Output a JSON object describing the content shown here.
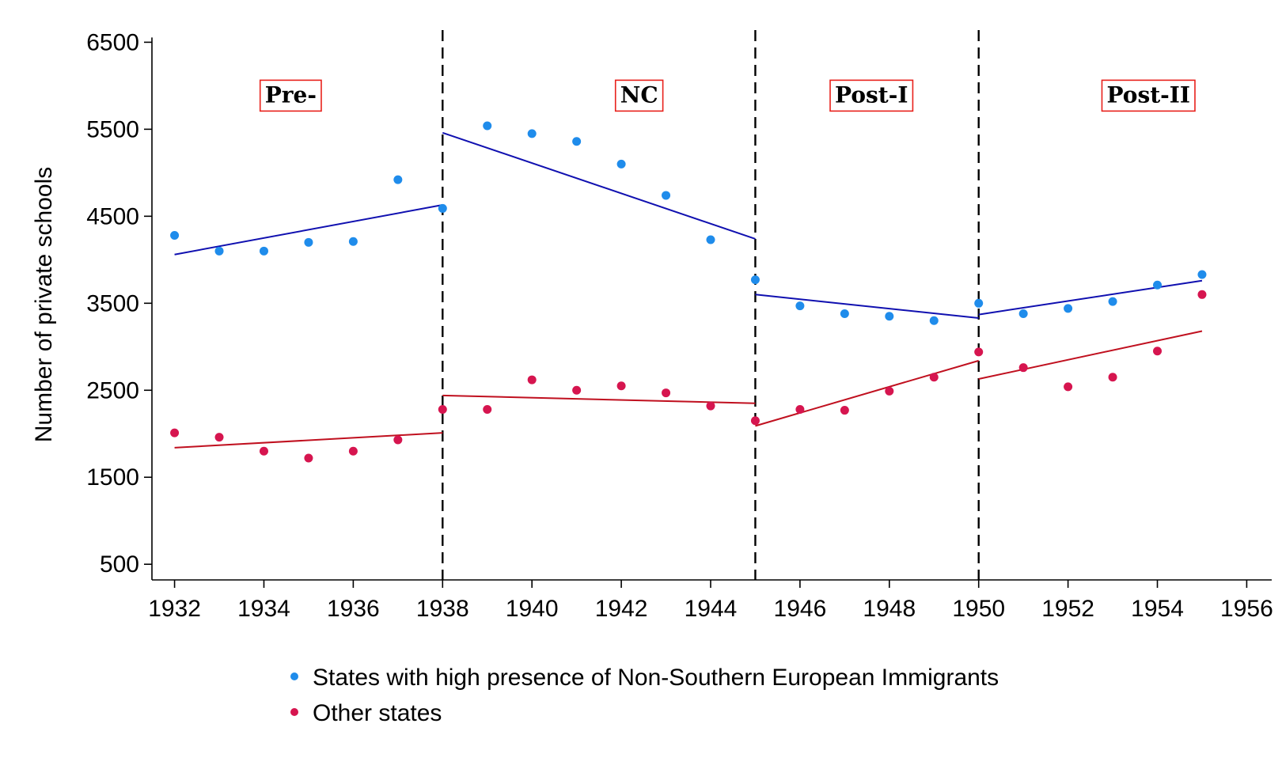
{
  "chart_data": {
    "type": "scatter",
    "title": "",
    "xlabel": "",
    "ylabel": "Number of private schools",
    "xlim": [
      1931.6,
      1956.4
    ],
    "ylim": [
      320,
      6640
    ],
    "xticks": [
      1932,
      1934,
      1936,
      1938,
      1940,
      1942,
      1944,
      1946,
      1948,
      1950,
      1952,
      1954,
      1956
    ],
    "yticks": [
      500,
      1500,
      2500,
      3500,
      4500,
      5500,
      6500
    ],
    "grid": false,
    "legend_position": "bottom",
    "cutoffs": [
      1938,
      1945,
      1950
    ],
    "periods": [
      {
        "label": "Pre-",
        "x": 1934.6,
        "y": 5900
      },
      {
        "label": "NC",
        "x": 1942.4,
        "y": 5900
      },
      {
        "label": "Post-I",
        "x": 1947.6,
        "y": 5900
      },
      {
        "label": "Post-II",
        "x": 1953.8,
        "y": 5900
      }
    ],
    "series": [
      {
        "name": "States with high presence of Non-Southern European Immigrants",
        "color": "#1f8ceb",
        "line_color": "#1010b0",
        "x": [
          1932,
          1933,
          1934,
          1935,
          1936,
          1937,
          1938,
          1939,
          1940,
          1941,
          1942,
          1943,
          1944,
          1945,
          1946,
          1947,
          1948,
          1949,
          1950,
          1951,
          1952,
          1953,
          1954,
          1955
        ],
        "values": [
          4280,
          4100,
          4100,
          4200,
          4210,
          4920,
          4590,
          5540,
          5450,
          5360,
          5100,
          4740,
          4230,
          3770,
          3470,
          3380,
          3350,
          3300,
          3500,
          3380,
          3440,
          3520,
          3710,
          3830
        ],
        "fits": [
          {
            "x": [
              1932,
              1938
            ],
            "y": [
              4060,
              4630
            ]
          },
          {
            "x": [
              1938,
              1945
            ],
            "y": [
              5460,
              4240
            ]
          },
          {
            "x": [
              1945,
              1950
            ],
            "y": [
              3600,
              3330
            ]
          },
          {
            "x": [
              1950,
              1955
            ],
            "y": [
              3370,
              3760
            ]
          }
        ]
      },
      {
        "name": "Other states",
        "color": "#d6154f",
        "line_color": "#c0101f",
        "x": [
          1932,
          1933,
          1934,
          1935,
          1936,
          1937,
          1938,
          1939,
          1940,
          1941,
          1942,
          1943,
          1944,
          1945,
          1946,
          1947,
          1948,
          1949,
          1950,
          1951,
          1952,
          1953,
          1954,
          1955
        ],
        "values": [
          2010,
          1960,
          1800,
          1720,
          1800,
          1930,
          2280,
          2280,
          2620,
          2500,
          2550,
          2470,
          2320,
          2150,
          2280,
          2270,
          2490,
          2650,
          2940,
          2760,
          2540,
          2650,
          2950,
          3600
        ],
        "fits": [
          {
            "x": [
              1932,
              1938
            ],
            "y": [
              1840,
              2010
            ]
          },
          {
            "x": [
              1938,
              1945
            ],
            "y": [
              2440,
              2350
            ]
          },
          {
            "x": [
              1945,
              1950
            ],
            "y": [
              2090,
              2840
            ]
          },
          {
            "x": [
              1950,
              1955
            ],
            "y": [
              2630,
              3180
            ]
          }
        ]
      }
    ]
  }
}
